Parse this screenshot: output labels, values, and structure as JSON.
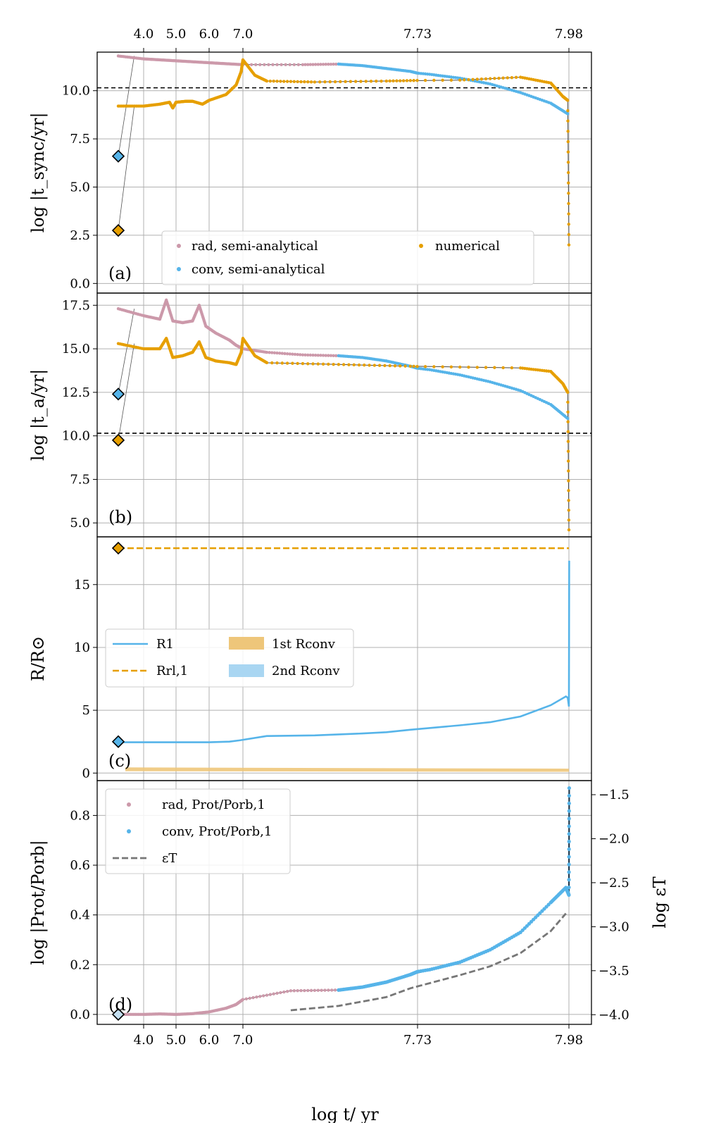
{
  "figure": {
    "xlabel": "log t/ yr",
    "top_ticks": [
      "4.0",
      "5.0",
      "6.0",
      "7.0",
      "7.73",
      "7.98"
    ],
    "bottom_ticks": [
      "4.0",
      "5.0",
      "6.0",
      "7.0",
      "7.73",
      "7.98"
    ],
    "colors": {
      "rad": "#cc99aa",
      "conv": "#56b4e9",
      "numerical": "#e69f00",
      "eps": "#777777",
      "line": "#555555"
    }
  },
  "chart_data": [
    {
      "id": "a",
      "type": "scatter",
      "panel_label": "(a)",
      "ylabel": "log |t_sync/yr|",
      "ylim": [
        -0.5,
        12.0
      ],
      "yticks": [
        "0.0",
        "2.5",
        "5.0",
        "7.5",
        "10.0"
      ],
      "hline": 10.15,
      "legend": [
        "rad, semi-analytical",
        "conv, semi-analytical",
        "numerical"
      ],
      "initial": {
        "conv": 6.6,
        "numerical": 2.75
      },
      "series": [
        {
          "name": "rad, semi-analytical",
          "x": [
            3.73,
            4.0,
            4.5,
            5.0,
            5.5,
            6.0,
            6.5,
            7.0,
            7.25,
            7.4
          ],
          "y": [
            11.8,
            11.65,
            11.6,
            11.55,
            11.5,
            11.45,
            11.4,
            11.35,
            11.35,
            11.38
          ]
        },
        {
          "name": "conv, semi-analytical",
          "x": [
            7.4,
            7.5,
            7.6,
            7.7,
            7.75,
            7.8,
            7.85,
            7.9,
            7.95,
            7.978
          ],
          "y": [
            11.38,
            11.3,
            11.15,
            11.0,
            10.85,
            10.65,
            10.35,
            9.9,
            9.35,
            8.8
          ]
        },
        {
          "name": "numerical",
          "x": [
            3.73,
            4.0,
            4.5,
            4.8,
            4.9,
            5.0,
            5.3,
            5.5,
            5.8,
            6.0,
            6.5,
            6.8,
            6.95,
            7.0,
            7.05,
            7.1,
            7.3,
            7.6,
            7.8,
            7.9,
            7.95,
            7.97,
            7.978,
            7.98
          ],
          "y": [
            9.2,
            9.2,
            9.3,
            9.4,
            9.1,
            9.4,
            9.45,
            9.45,
            9.3,
            9.5,
            9.8,
            10.3,
            11.0,
            11.6,
            10.8,
            10.5,
            10.45,
            10.5,
            10.55,
            10.7,
            10.4,
            9.7,
            9.5,
            2.0
          ]
        }
      ]
    },
    {
      "id": "b",
      "type": "scatter",
      "panel_label": "(b)",
      "ylabel": "log |t_a/yr|",
      "ylim": [
        4.2,
        18.2
      ],
      "yticks": [
        "5.0",
        "7.5",
        "10.0",
        "12.5",
        "15.0",
        "17.5"
      ],
      "hline": 10.15,
      "initial": {
        "conv": 12.4,
        "numerical": 9.75
      },
      "series": [
        {
          "name": "rad, semi-analytical",
          "x": [
            3.73,
            4.0,
            4.5,
            4.7,
            4.9,
            5.2,
            5.5,
            5.7,
            5.9,
            6.2,
            6.6,
            6.8,
            7.0,
            7.1,
            7.25,
            7.4
          ],
          "y": [
            17.3,
            16.9,
            16.7,
            17.8,
            16.6,
            16.5,
            16.6,
            17.5,
            16.3,
            15.9,
            15.5,
            15.2,
            15.0,
            14.8,
            14.65,
            14.6
          ]
        },
        {
          "name": "conv, semi-analytical",
          "x": [
            7.4,
            7.5,
            7.6,
            7.7,
            7.75,
            7.8,
            7.85,
            7.9,
            7.95,
            7.978
          ],
          "y": [
            14.6,
            14.5,
            14.3,
            14.0,
            13.8,
            13.5,
            13.1,
            12.6,
            11.8,
            11.0
          ]
        },
        {
          "name": "numerical",
          "x": [
            3.73,
            4.0,
            4.5,
            4.7,
            4.9,
            5.2,
            5.5,
            5.7,
            5.9,
            6.2,
            6.6,
            6.8,
            6.95,
            7.0,
            7.05,
            7.1,
            7.4,
            7.7,
            7.9,
            7.95,
            7.97,
            7.978,
            7.98
          ],
          "y": [
            15.3,
            15.0,
            15.0,
            15.6,
            14.5,
            14.6,
            14.8,
            15.4,
            14.5,
            14.3,
            14.2,
            14.1,
            14.8,
            15.6,
            14.6,
            14.2,
            14.1,
            14.0,
            13.9,
            13.7,
            13.0,
            12.5,
            4.6
          ]
        }
      ]
    },
    {
      "id": "c",
      "type": "line",
      "panel_label": "(c)",
      "ylabel": "R/R⊙",
      "ylim": [
        -0.6,
        18.8
      ],
      "yticks": [
        "0",
        "5",
        "10",
        "15"
      ],
      "legend": [
        "R1",
        "Rrl,1",
        "1st Rconv",
        "2nd Rconv"
      ],
      "initial": {
        "numerical": 17.9,
        "conv": 2.5
      },
      "series": [
        {
          "name": "R1",
          "x": [
            3.73,
            4.0,
            5.0,
            6.0,
            6.6,
            6.9,
            7.1,
            7.3,
            7.5,
            7.6,
            7.7,
            7.8,
            7.85,
            7.9,
            7.95,
            7.975,
            7.978,
            7.98,
            7.981
          ],
          "y": [
            2.45,
            2.45,
            2.45,
            2.45,
            2.5,
            2.6,
            2.95,
            3.0,
            3.15,
            3.25,
            3.45,
            3.8,
            4.05,
            4.5,
            5.4,
            6.1,
            6.0,
            5.3,
            16.9
          ]
        },
        {
          "name": "Rrl,1",
          "x": [
            3.73,
            7.98
          ],
          "y": [
            17.9,
            17.9
          ]
        },
        {
          "name": "1st Rconv",
          "x": [
            3.73,
            7.98
          ],
          "y": [
            0.15,
            0.45
          ]
        }
      ]
    },
    {
      "id": "d",
      "type": "scatter",
      "panel_label": "(d)",
      "ylabel": "log |Prot/Porb|",
      "ylabel_right": "log εT",
      "ylim": [
        -0.04,
        0.94
      ],
      "yticks": [
        "0.0",
        "0.2",
        "0.4",
        "0.6",
        "0.8"
      ],
      "y2lim": [
        -4.11,
        -1.34
      ],
      "y2ticks": [
        "−1.5",
        "−2.0",
        "−2.5",
        "−3.0",
        "−3.5",
        "−4.0"
      ],
      "legend": [
        "rad, Prot/Porb,1",
        "conv, Prot/Porb,1",
        "εT"
      ],
      "initial": {
        "conv": 0.0
      },
      "series": [
        {
          "name": "rad, Prot/Porb,1",
          "x": [
            3.75,
            4.0,
            4.5,
            5.0,
            5.5,
            6.0,
            6.5,
            6.8,
            7.0,
            7.2,
            7.4
          ],
          "y": [
            0.0,
            0.0,
            0.002,
            0.0,
            0.003,
            0.01,
            0.025,
            0.04,
            0.06,
            0.095,
            0.098
          ]
        },
        {
          "name": "conv, Prot/Porb,1",
          "x": [
            7.4,
            7.5,
            7.6,
            7.7,
            7.75,
            7.8,
            7.85,
            7.9,
            7.95,
            7.975,
            7.98,
            7.981
          ],
          "y": [
            0.098,
            0.11,
            0.13,
            0.16,
            0.18,
            0.21,
            0.26,
            0.33,
            0.45,
            0.51,
            0.48,
            0.91
          ]
        },
        {
          "name": "εT",
          "x": [
            7.2,
            7.4,
            7.6,
            7.7,
            7.8,
            7.85,
            7.9,
            7.95,
            7.975
          ],
          "y": [
            -3.95,
            -3.9,
            -3.8,
            -3.7,
            -3.55,
            -3.45,
            -3.3,
            -3.05,
            -2.85
          ]
        }
      ]
    }
  ]
}
